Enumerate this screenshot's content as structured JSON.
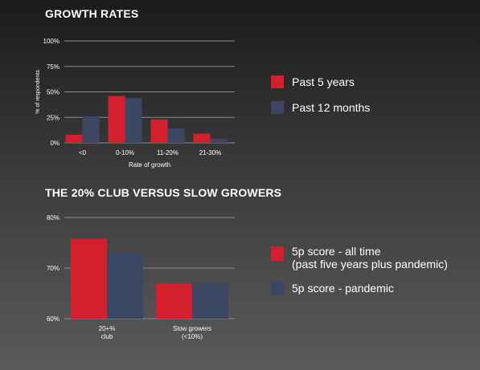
{
  "colors": {
    "red": "#d4202e",
    "navy": "#3c4763",
    "grid": "#8a8a8a"
  },
  "titles": {
    "chart1": "GROWTH RATES",
    "chart2": "THE 20% CLUB VERSUS SLOW GROWERS"
  },
  "chart_data": [
    {
      "type": "bar",
      "title": "GROWTH RATES",
      "xlabel": "Rate of growth",
      "ylabel": "% of respondents",
      "ylim": [
        0,
        100
      ],
      "yticks": [
        "0%",
        "25%",
        "50%",
        "75%",
        "100%"
      ],
      "ytick_values": [
        0,
        25,
        50,
        75,
        100
      ],
      "categories": [
        "<0",
        "0-10%",
        "11-20%",
        "21-30%"
      ],
      "series": [
        {
          "name": "Past 5 years",
          "color": "#d4202e",
          "values": [
            8,
            46,
            23,
            9
          ]
        },
        {
          "name": "Past 12 months",
          "color": "#3c4763",
          "values": [
            26,
            44,
            14,
            4
          ]
        }
      ],
      "grid": true,
      "legend": "right"
    },
    {
      "type": "bar",
      "title": "THE 20% CLUB VERSUS SLOW GROWERS",
      "xlabel": "",
      "ylabel": "",
      "ylim": [
        60,
        80
      ],
      "yticks": [
        "60%",
        "70%",
        "80%"
      ],
      "ytick_values": [
        60,
        70,
        80
      ],
      "categories": [
        [
          "20+%",
          "club"
        ],
        [
          "Slow growers",
          "(<10%)"
        ]
      ],
      "series": [
        {
          "name": "5p score - all time (past five years plus pandemic)",
          "color": "#d4202e",
          "values": [
            75.8,
            67
          ]
        },
        {
          "name": "5p score - pandemic",
          "color": "#3c4763",
          "values": [
            73,
            67
          ]
        }
      ],
      "grid": true,
      "legend": "right"
    }
  ],
  "legend1": [
    {
      "label": "Past 5 years",
      "color": "#d4202e"
    },
    {
      "label": "Past 12 months",
      "color": "#3c4763"
    }
  ],
  "legend2": [
    {
      "line1": "5p score - all time",
      "line2": "(past five years plus pandemic)",
      "color": "#d4202e"
    },
    {
      "line1": "5p score - pandemic",
      "color": "#3c4763"
    }
  ]
}
